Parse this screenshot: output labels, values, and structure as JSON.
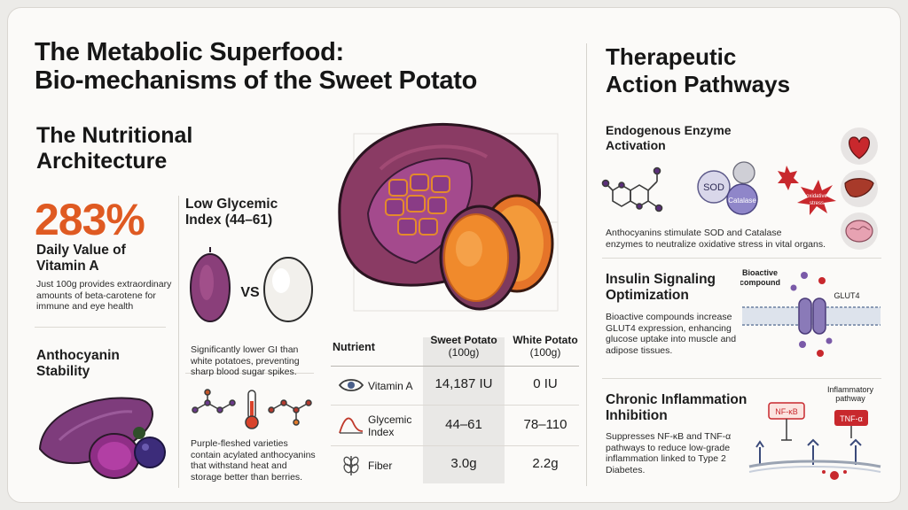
{
  "page": {
    "title_line1": "The Metabolic Superfood:",
    "title_line2": "Bio-mechanisms of the Sweet Potato"
  },
  "left": {
    "section_title_line1": "The Nutritional",
    "section_title_line2": "Architecture",
    "stat_value": "283%",
    "stat_label_line1": "Daily Value of",
    "stat_label_line2": "Vitamin A",
    "stat_desc_line1": "Just 100g provides extraordinary",
    "stat_desc_line2": "amounts of beta-carotene for",
    "stat_desc_line3": "immune and eye health",
    "gi_title_line1": "Low Glycemic",
    "gi_title_line2": "Index (44–61)",
    "vs_label": "VS",
    "gi_desc_line1": "Significantly lower GI than",
    "gi_desc_line2": "white potatoes, preventing",
    "gi_desc_line3": "sharp blood sugar spikes.",
    "antho_title_line1": "Anthocyanin",
    "antho_title_line2": "Stability",
    "antho_desc_line1": "Purple-fleshed varieties",
    "antho_desc_line2": "contain acylated anthocyanins",
    "antho_desc_line3": "that withstand heat and",
    "antho_desc_line4": "storage better than berries."
  },
  "table": {
    "header_nutrient": "Nutrient",
    "header_sweet_line1": "Sweet Potato",
    "header_sweet_line2": "(100g)",
    "header_white_line1": "White Potato",
    "header_white_line2": "(100g)",
    "rows": [
      {
        "icon": "eye-icon",
        "nutrient": "Vitamin A",
        "nutrient_line2": "",
        "sweet": "14,187 IU",
        "white": "0 IU"
      },
      {
        "icon": "glycemic-curve-icon",
        "nutrient": "Glycemic",
        "nutrient_line2": "Index",
        "sweet": "44–61",
        "white": "78–110"
      },
      {
        "icon": "wheat-icon",
        "nutrient": "Fiber",
        "nutrient_line2": "",
        "sweet": "3.0g",
        "white": "2.2g"
      }
    ]
  },
  "right": {
    "title_line1": "Therapeutic",
    "title_line2": "Action Pathways",
    "enzyme_title_line1": "Endogenous Enzyme",
    "enzyme_title_line2": "Activation",
    "sod_label": "SOD",
    "catalase_label": "Catalase",
    "oxidative_label_line1": "oxidative",
    "oxidative_label_line2": "stress",
    "enzyme_desc_line1": "Anthocyanins stimulate SOD and Catalase",
    "enzyme_desc_line2": "enzymes to neutralize oxidative stress in vital organs.",
    "insulin_title_line1": "Insulin Signaling",
    "insulin_title_line2": "Optimization",
    "bioactive_label_line1": "Bioactive",
    "bioactive_label_line2": "compound",
    "glut4_label": "GLUT4",
    "insulin_desc_line1": "Bioactive compounds increase",
    "insulin_desc_line2": "GLUT4 expression, enhancing",
    "insulin_desc_line3": "glucose uptake into muscle and",
    "insulin_desc_line4": "adipose tissues.",
    "inflam_title_line1": "Chronic Inflammation",
    "inflam_title_line2": "Inhibition",
    "inflam_pathway_line1": "Inflammatory",
    "inflam_pathway_line2": "pathway",
    "nfkb_label": "NF-κB",
    "tnf_label": "TNF-α",
    "inflam_desc_line1": "Suppresses NF-κB and TNF-α",
    "inflam_desc_line2": "pathways to reduce low-grade",
    "inflam_desc_line3": "inflammation linked to Type 2",
    "inflam_desc_line4": "Diabetes."
  },
  "colors": {
    "accent_orange": "#df5a22",
    "purple_skin": "#7a3a6e",
    "orange_flesh": "#f08a2c",
    "membrane_blue": "#9fb0c8",
    "alert_red": "#c8282d"
  }
}
